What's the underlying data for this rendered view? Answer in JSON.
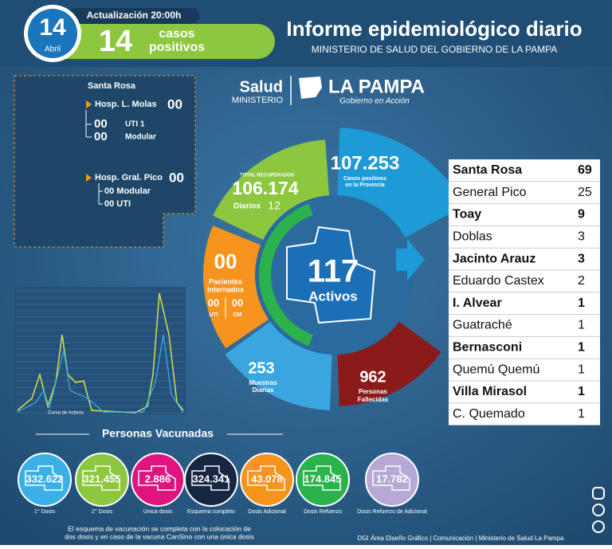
{
  "header": {
    "day": "14",
    "month": "Abril",
    "update": "Actualización 20:00h",
    "cases": "14",
    "cases_label_1": "casos",
    "cases_label_2": "positivos",
    "title": "Informe epidemiológico diario",
    "subtitle": "MINISTERIO DE SALUD DEL GOBIERNO DE LA PAMPA"
  },
  "logo": {
    "salud": "Salud",
    "ministerio": "MINISTERIO",
    "pampa": "LA PAMPA",
    "lema": "Gobierno en Acción"
  },
  "hospitals": {
    "city": "Santa Rosa",
    "h1": {
      "name": "Hosp. L. Molas",
      "value": "00",
      "rows": [
        [
          "00",
          "UTI 1"
        ],
        [
          "00",
          "Modular"
        ]
      ]
    },
    "h2": {
      "name": "Hosp. Gral. Pico",
      "value": "00",
      "rows": [
        "00 Modular",
        "00 UTI"
      ]
    }
  },
  "wheel": {
    "positivos": {
      "value": "107.253",
      "label_1": "Casos positivos",
      "label_2": "en la Provincia"
    },
    "recuperados": {
      "title": "TOTAL RECUPERADOS",
      "value": "106.174",
      "daily_label": "Diarios",
      "daily": "12"
    },
    "internados": {
      "value": "00",
      "label_1": "Pacientes",
      "label_2": "Internados",
      "uti": "00",
      "uti_label": "UTI",
      "cm": "00",
      "cm_label": "CM"
    },
    "muestras": {
      "value": "253",
      "label_1": "Muestras",
      "label_2": "Diarias"
    },
    "fallecidas": {
      "value": "962",
      "label_1": "Personas",
      "label_2": "Fallecidas"
    },
    "activos": {
      "value": "117",
      "label": "Activos"
    }
  },
  "localities": [
    [
      "Santa Rosa",
      "69"
    ],
    [
      "General Pico",
      "25"
    ],
    [
      "Toay",
      "9"
    ],
    [
      "Doblas",
      "3"
    ],
    [
      "Jacinto Arauz",
      "3"
    ],
    [
      "Eduardo Castex",
      "2"
    ],
    [
      "I. Alvear",
      "1"
    ],
    [
      "Guatraché",
      "1"
    ],
    [
      "Bernasconi",
      "1"
    ],
    [
      "Quemú Quemú",
      "1"
    ],
    [
      "Villa Mirasol",
      "1"
    ],
    [
      "C. Quemado",
      "1"
    ]
  ],
  "curve_label": "Curva de Activos",
  "vaccines": {
    "title": "Personas Vacunadas",
    "items": [
      {
        "value": "332.622",
        "label": "1° Dosis",
        "color": "#3bb0e6"
      },
      {
        "value": "321.455",
        "label": "2° Dosis",
        "color": "#8dc63f"
      },
      {
        "value": "2.886",
        "label": "Única dosis",
        "color": "#e0147f"
      },
      {
        "value": "324.341",
        "label": "Esquema completo",
        "color": "#172742"
      },
      {
        "value": "43.078",
        "label": "Dosis Adicional",
        "color": "#f7941d"
      },
      {
        "value": "174.845",
        "label": "Dosis Refuerzo",
        "color": "#2bb24c"
      },
      {
        "value": "17.782",
        "label": "Dosis Refuerzo de Adicional",
        "color": "#b7a8d6"
      }
    ]
  },
  "footnote": [
    "El esquema de vacunación se completa con la colocación de",
    "dos dosis y en caso de la vacuna CanSino con una única dosis"
  ],
  "credits": "DGI Área Diseño Gráfico  | Comunicación | Ministerio de Salud La Pampa"
}
